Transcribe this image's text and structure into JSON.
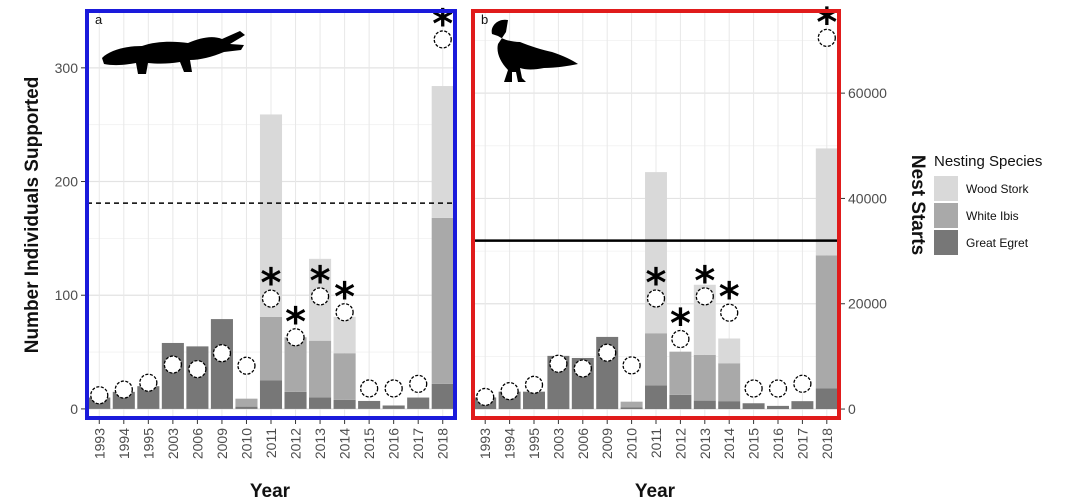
{
  "chart_data": [
    {
      "panel": "a",
      "type": "bar",
      "stacked": true,
      "border_color": "#1a1adb",
      "silhouette": "alligator-icon",
      "xlabel": "Year",
      "ylabel": "Number Individuals Supported",
      "ylim": [
        -8,
        350
      ],
      "yticks": [
        0,
        100,
        200,
        300
      ],
      "categories": [
        "1993",
        "1994",
        "1995",
        "2003",
        "2006",
        "2009",
        "2010",
        "2011",
        "2012",
        "2013",
        "2014",
        "2015",
        "2016",
        "2017",
        "2018"
      ],
      "series": [
        {
          "name": "Great Egret",
          "color": "#777777",
          "values": [
            10,
            15,
            20,
            58,
            55,
            79,
            2,
            25,
            15,
            10,
            8,
            7,
            3,
            10,
            22
          ]
        },
        {
          "name": "White Ibis",
          "color": "#a9a9a9",
          "values": [
            0,
            0,
            0,
            0,
            0,
            0,
            7,
            56,
            48,
            50,
            41,
            0,
            0,
            0,
            146
          ]
        },
        {
          "name": "Wood Stork",
          "color": "#d9d9d9",
          "values": [
            0,
            0,
            0,
            0,
            0,
            0,
            0,
            178,
            0,
            72,
            32,
            0,
            0,
            0,
            116
          ]
        }
      ],
      "circle_values": [
        12,
        17,
        23,
        39,
        35,
        49,
        38,
        97,
        63,
        99,
        85,
        18,
        18,
        22,
        325
      ],
      "asterisk_years": [
        "2011",
        "2012",
        "2013",
        "2014",
        "2018"
      ],
      "reference_line": {
        "value": 181,
        "style": "dashed"
      }
    },
    {
      "panel": "b",
      "type": "bar",
      "stacked": true,
      "border_color": "#e01b1b",
      "silhouette": "vulture-icon",
      "xlabel": "Year",
      "ylabel": "Nest Starts",
      "ylabel_side": "right",
      "ylim": [
        -1700,
        75600
      ],
      "yticks": [
        0,
        20000,
        40000,
        60000
      ],
      "categories": [
        "1993",
        "1994",
        "1995",
        "2003",
        "2006",
        "2009",
        "2010",
        "2011",
        "2012",
        "2013",
        "2014",
        "2015",
        "2016",
        "2017",
        "2018"
      ],
      "series": [
        {
          "name": "Great Egret",
          "color": "#777777",
          "values": [
            2200,
            3300,
            3300,
            10100,
            9700,
            13700,
            300,
            4500,
            2700,
            1600,
            1500,
            1100,
            600,
            1500,
            3900
          ]
        },
        {
          "name": "White Ibis",
          "color": "#a9a9a9",
          "values": [
            0,
            0,
            0,
            0,
            0,
            0,
            1100,
            9900,
            8200,
            8700,
            7200,
            0,
            0,
            0,
            25300
          ]
        },
        {
          "name": "Wood Stork",
          "color": "#d9d9d9",
          "values": [
            0,
            0,
            0,
            0,
            0,
            0,
            0,
            30600,
            0,
            13300,
            4700,
            0,
            0,
            0,
            20300
          ]
        }
      ],
      "circle_values": [
        2300,
        3400,
        4600,
        8600,
        7700,
        10700,
        8300,
        21000,
        13300,
        21400,
        18300,
        3900,
        3900,
        4800,
        70500
      ],
      "asterisk_years": [
        "2011",
        "2012",
        "2013",
        "2014",
        "2018"
      ],
      "reference_line": {
        "value": 32000,
        "style": "solid"
      }
    }
  ],
  "legend": {
    "title": "Nesting Species",
    "items": [
      {
        "label": "Wood Stork",
        "color": "#d9d9d9"
      },
      {
        "label": "White Ibis",
        "color": "#a9a9a9"
      },
      {
        "label": "Great Egret",
        "color": "#777777"
      }
    ]
  },
  "asterisk_symbol": "*"
}
